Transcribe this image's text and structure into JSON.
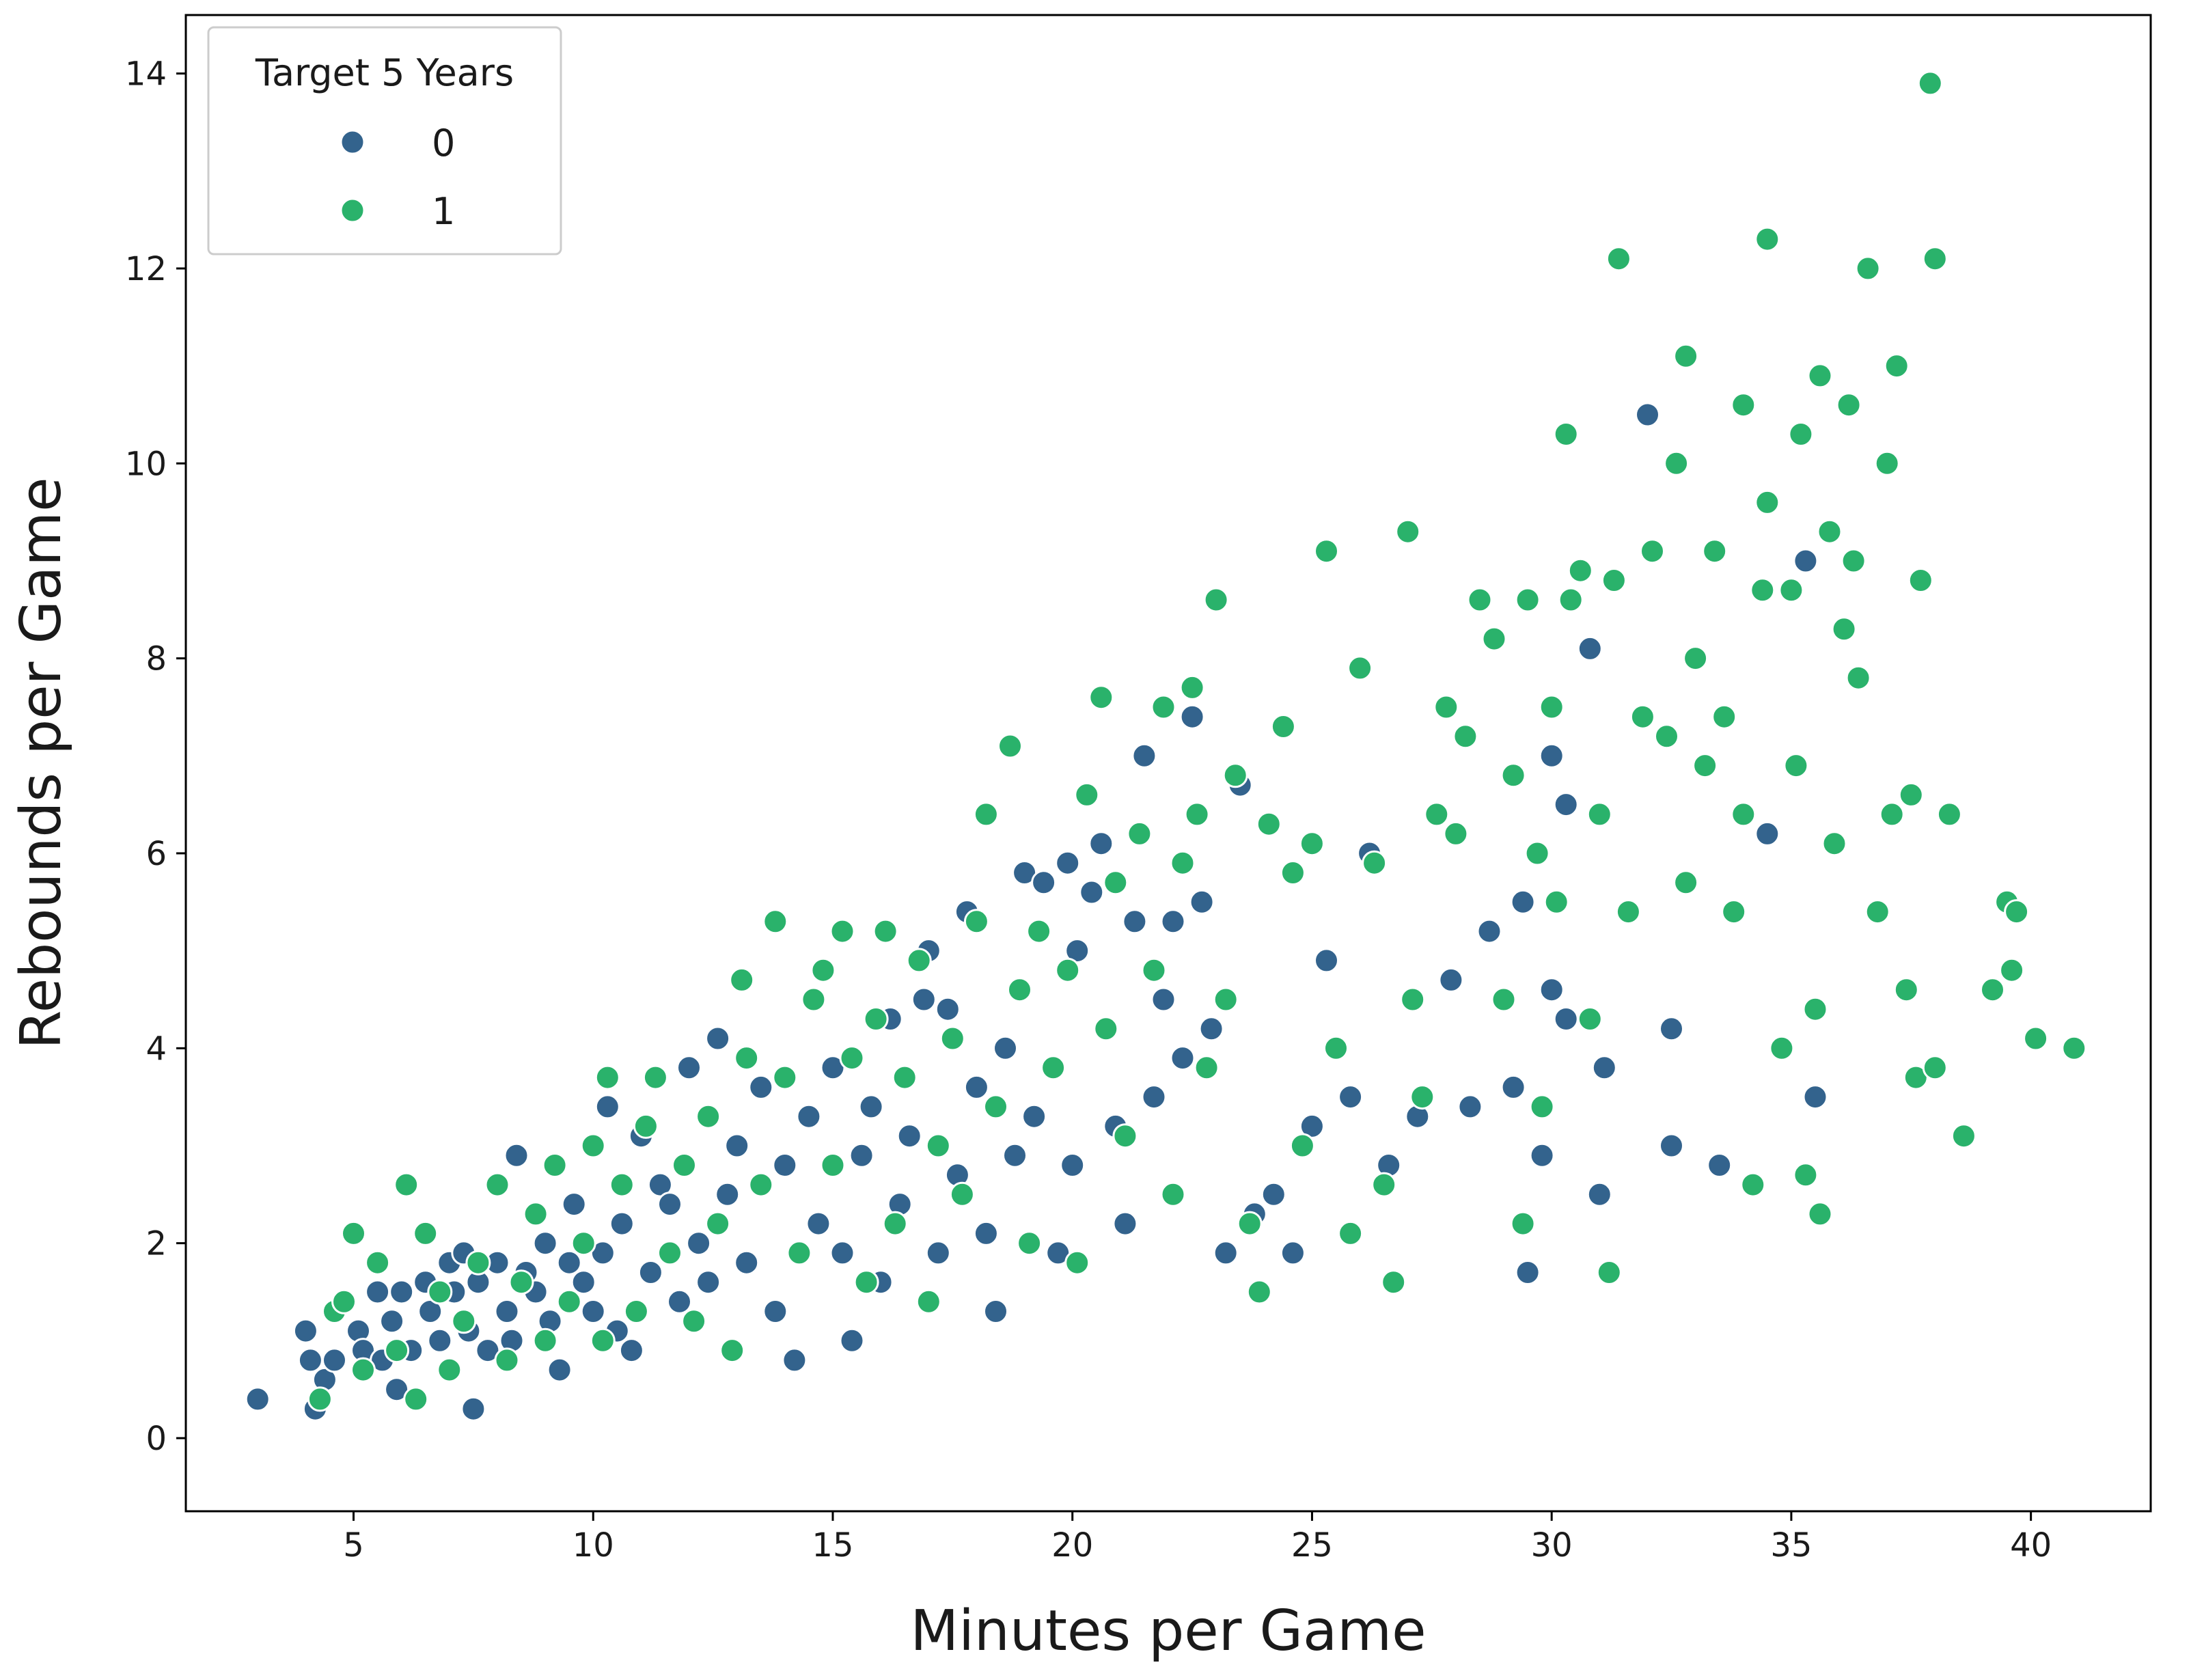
{
  "chart_data": {
    "type": "scatter",
    "title": "",
    "xlabel": "Minutes per Game",
    "ylabel": "Rebounds per Game",
    "xlim": [
      1.5,
      42.5
    ],
    "ylim": [
      -0.75,
      14.6
    ],
    "xticks": [
      5,
      10,
      15,
      20,
      25,
      30,
      35,
      40
    ],
    "yticks": [
      0,
      2,
      4,
      6,
      8,
      10,
      12,
      14
    ],
    "grid": false,
    "legend": {
      "title": "Target 5 Years",
      "position": "top-left",
      "entries": [
        {
          "label": "0",
          "color": "#33638d"
        },
        {
          "label": "1",
          "color": "#2ab26b"
        }
      ]
    },
    "colors": {
      "0": "#33638d",
      "1": "#2ab26b",
      "marker_edge": "#ffffff"
    },
    "series": [
      {
        "name": "0",
        "color": "#33638d",
        "points": [
          [
            3.0,
            0.4
          ],
          [
            4.0,
            1.1
          ],
          [
            4.1,
            0.8
          ],
          [
            4.2,
            0.3
          ],
          [
            4.4,
            0.6
          ],
          [
            4.6,
            0.8
          ],
          [
            5.1,
            1.1
          ],
          [
            5.2,
            0.9
          ],
          [
            5.5,
            1.5
          ],
          [
            5.6,
            0.8
          ],
          [
            5.8,
            1.2
          ],
          [
            5.9,
            0.5
          ],
          [
            6.0,
            1.5
          ],
          [
            6.2,
            0.9
          ],
          [
            6.5,
            1.6
          ],
          [
            6.6,
            1.3
          ],
          [
            6.8,
            1.0
          ],
          [
            7.0,
            1.8
          ],
          [
            7.1,
            1.5
          ],
          [
            7.3,
            1.9
          ],
          [
            7.4,
            1.1
          ],
          [
            7.5,
            0.3
          ],
          [
            7.6,
            1.6
          ],
          [
            7.8,
            0.9
          ],
          [
            8.0,
            1.8
          ],
          [
            8.2,
            1.3
          ],
          [
            8.3,
            1.0
          ],
          [
            8.4,
            2.9
          ],
          [
            8.6,
            1.7
          ],
          [
            8.8,
            1.5
          ],
          [
            9.0,
            2.0
          ],
          [
            9.1,
            1.2
          ],
          [
            9.3,
            0.7
          ],
          [
            9.5,
            1.8
          ],
          [
            9.6,
            2.4
          ],
          [
            9.8,
            1.6
          ],
          [
            10.0,
            1.3
          ],
          [
            10.2,
            1.9
          ],
          [
            10.3,
            3.4
          ],
          [
            10.5,
            1.1
          ],
          [
            10.6,
            2.2
          ],
          [
            10.8,
            0.9
          ],
          [
            11.0,
            3.1
          ],
          [
            11.2,
            1.7
          ],
          [
            11.4,
            2.6
          ],
          [
            11.6,
            2.4
          ],
          [
            11.8,
            1.4
          ],
          [
            12.0,
            3.8
          ],
          [
            12.2,
            2.0
          ],
          [
            12.4,
            1.6
          ],
          [
            12.6,
            4.1
          ],
          [
            12.8,
            2.5
          ],
          [
            13.0,
            3.0
          ],
          [
            13.2,
            1.8
          ],
          [
            13.5,
            3.6
          ],
          [
            13.8,
            1.3
          ],
          [
            14.0,
            2.8
          ],
          [
            14.2,
            0.8
          ],
          [
            14.5,
            3.3
          ],
          [
            14.7,
            2.2
          ],
          [
            15.0,
            3.8
          ],
          [
            15.2,
            1.9
          ],
          [
            15.4,
            1.0
          ],
          [
            15.6,
            2.9
          ],
          [
            15.8,
            3.4
          ],
          [
            16.0,
            1.6
          ],
          [
            16.2,
            4.3
          ],
          [
            16.4,
            2.4
          ],
          [
            16.6,
            3.1
          ],
          [
            16.9,
            4.5
          ],
          [
            17.0,
            5.0
          ],
          [
            17.2,
            1.9
          ],
          [
            17.4,
            4.4
          ],
          [
            17.6,
            2.7
          ],
          [
            17.8,
            5.4
          ],
          [
            18.0,
            3.6
          ],
          [
            18.2,
            2.1
          ],
          [
            18.4,
            1.3
          ],
          [
            18.6,
            4.0
          ],
          [
            18.8,
            2.9
          ],
          [
            19.0,
            5.8
          ],
          [
            19.2,
            3.3
          ],
          [
            19.4,
            5.7
          ],
          [
            19.7,
            1.9
          ],
          [
            19.9,
            5.9
          ],
          [
            20.0,
            2.8
          ],
          [
            20.1,
            5.0
          ],
          [
            20.4,
            5.6
          ],
          [
            20.6,
            6.1
          ],
          [
            20.9,
            3.2
          ],
          [
            21.1,
            2.2
          ],
          [
            21.3,
            5.3
          ],
          [
            21.5,
            7.0
          ],
          [
            21.7,
            3.5
          ],
          [
            21.9,
            4.5
          ],
          [
            22.1,
            5.3
          ],
          [
            22.3,
            3.9
          ],
          [
            22.5,
            7.4
          ],
          [
            22.7,
            5.5
          ],
          [
            22.9,
            4.2
          ],
          [
            23.2,
            1.9
          ],
          [
            23.5,
            6.7
          ],
          [
            23.8,
            2.3
          ],
          [
            24.2,
            2.5
          ],
          [
            24.6,
            1.9
          ],
          [
            25.0,
            3.2
          ],
          [
            25.3,
            4.9
          ],
          [
            25.8,
            3.5
          ],
          [
            26.2,
            6.0
          ],
          [
            26.6,
            2.8
          ],
          [
            27.2,
            3.3
          ],
          [
            27.9,
            4.7
          ],
          [
            28.3,
            3.4
          ],
          [
            28.7,
            5.2
          ],
          [
            29.2,
            3.6
          ],
          [
            29.4,
            5.5
          ],
          [
            29.5,
            1.7
          ],
          [
            29.8,
            2.9
          ],
          [
            30.0,
            7.0
          ],
          [
            30.0,
            4.6
          ],
          [
            30.3,
            6.5
          ],
          [
            30.3,
            4.3
          ],
          [
            30.8,
            8.1
          ],
          [
            31.0,
            2.5
          ],
          [
            31.1,
            3.8
          ],
          [
            32.0,
            10.5
          ],
          [
            32.5,
            3.0
          ],
          [
            32.5,
            4.2
          ],
          [
            33.5,
            2.8
          ],
          [
            34.5,
            6.2
          ],
          [
            35.3,
            9.0
          ],
          [
            35.5,
            3.5
          ]
        ]
      },
      {
        "name": "1",
        "color": "#2ab26b",
        "points": [
          [
            4.3,
            0.4
          ],
          [
            4.6,
            1.3
          ],
          [
            4.8,
            1.4
          ],
          [
            5.0,
            2.1
          ],
          [
            5.2,
            0.7
          ],
          [
            5.5,
            1.8
          ],
          [
            5.9,
            0.9
          ],
          [
            6.1,
            2.6
          ],
          [
            6.3,
            0.4
          ],
          [
            6.5,
            2.1
          ],
          [
            6.8,
            1.5
          ],
          [
            7.0,
            0.7
          ],
          [
            7.3,
            1.2
          ],
          [
            7.6,
            1.8
          ],
          [
            8.0,
            2.6
          ],
          [
            8.2,
            0.8
          ],
          [
            8.5,
            1.6
          ],
          [
            8.8,
            2.3
          ],
          [
            9.0,
            1.0
          ],
          [
            9.2,
            2.8
          ],
          [
            9.5,
            1.4
          ],
          [
            9.8,
            2.0
          ],
          [
            10.0,
            3.0
          ],
          [
            10.2,
            1.0
          ],
          [
            10.3,
            3.7
          ],
          [
            10.6,
            2.6
          ],
          [
            10.9,
            1.3
          ],
          [
            11.1,
            3.2
          ],
          [
            11.3,
            3.7
          ],
          [
            11.6,
            1.9
          ],
          [
            11.9,
            2.8
          ],
          [
            12.1,
            1.2
          ],
          [
            12.4,
            3.3
          ],
          [
            12.6,
            2.2
          ],
          [
            12.9,
            0.9
          ],
          [
            13.1,
            4.7
          ],
          [
            13.2,
            3.9
          ],
          [
            13.5,
            2.6
          ],
          [
            13.8,
            5.3
          ],
          [
            14.0,
            3.7
          ],
          [
            14.3,
            1.9
          ],
          [
            14.6,
            4.5
          ],
          [
            14.8,
            4.8
          ],
          [
            15.0,
            2.8
          ],
          [
            15.2,
            5.2
          ],
          [
            15.4,
            3.9
          ],
          [
            15.7,
            1.6
          ],
          [
            15.9,
            4.3
          ],
          [
            16.1,
            5.2
          ],
          [
            16.3,
            2.2
          ],
          [
            16.5,
            3.7
          ],
          [
            16.8,
            4.9
          ],
          [
            17.0,
            1.4
          ],
          [
            17.2,
            3.0
          ],
          [
            17.5,
            4.1
          ],
          [
            17.7,
            2.5
          ],
          [
            18.0,
            5.3
          ],
          [
            18.2,
            6.4
          ],
          [
            18.4,
            3.4
          ],
          [
            18.7,
            7.1
          ],
          [
            18.9,
            4.6
          ],
          [
            19.1,
            2.0
          ],
          [
            19.3,
            5.2
          ],
          [
            19.6,
            3.8
          ],
          [
            19.9,
            4.8
          ],
          [
            20.1,
            1.8
          ],
          [
            20.3,
            6.6
          ],
          [
            20.6,
            7.6
          ],
          [
            20.7,
            4.2
          ],
          [
            20.9,
            5.7
          ],
          [
            21.1,
            3.1
          ],
          [
            21.4,
            6.2
          ],
          [
            21.7,
            4.8
          ],
          [
            21.9,
            7.5
          ],
          [
            22.1,
            2.5
          ],
          [
            22.3,
            5.9
          ],
          [
            22.5,
            7.7
          ],
          [
            22.6,
            6.4
          ],
          [
            22.8,
            3.8
          ],
          [
            23.0,
            8.6
          ],
          [
            23.2,
            4.5
          ],
          [
            23.4,
            6.8
          ],
          [
            23.7,
            2.2
          ],
          [
            23.9,
            1.5
          ],
          [
            24.1,
            6.3
          ],
          [
            24.4,
            7.3
          ],
          [
            24.6,
            5.8
          ],
          [
            24.8,
            3.0
          ],
          [
            25.0,
            6.1
          ],
          [
            25.3,
            9.1
          ],
          [
            25.5,
            4.0
          ],
          [
            25.8,
            2.1
          ],
          [
            26.0,
            7.9
          ],
          [
            26.3,
            5.9
          ],
          [
            26.5,
            2.6
          ],
          [
            26.7,
            1.6
          ],
          [
            27.0,
            9.3
          ],
          [
            27.1,
            4.5
          ],
          [
            27.3,
            3.5
          ],
          [
            27.6,
            6.4
          ],
          [
            27.8,
            7.5
          ],
          [
            28.0,
            6.2
          ],
          [
            28.2,
            7.2
          ],
          [
            28.5,
            8.6
          ],
          [
            28.8,
            8.2
          ],
          [
            29.0,
            4.5
          ],
          [
            29.2,
            6.8
          ],
          [
            29.4,
            2.2
          ],
          [
            29.5,
            8.6
          ],
          [
            29.7,
            6.0
          ],
          [
            29.8,
            3.4
          ],
          [
            30.0,
            7.5
          ],
          [
            30.1,
            5.5
          ],
          [
            30.3,
            10.3
          ],
          [
            30.4,
            8.6
          ],
          [
            30.6,
            8.9
          ],
          [
            30.8,
            4.3
          ],
          [
            31.0,
            6.4
          ],
          [
            31.2,
            1.7
          ],
          [
            31.3,
            8.8
          ],
          [
            31.4,
            12.1
          ],
          [
            31.6,
            5.4
          ],
          [
            31.9,
            7.4
          ],
          [
            32.1,
            9.1
          ],
          [
            32.4,
            7.2
          ],
          [
            32.6,
            10.0
          ],
          [
            32.8,
            11.1
          ],
          [
            32.8,
            5.7
          ],
          [
            33.0,
            8.0
          ],
          [
            33.2,
            6.9
          ],
          [
            33.4,
            9.1
          ],
          [
            33.6,
            7.4
          ],
          [
            33.8,
            5.4
          ],
          [
            34.0,
            10.6
          ],
          [
            34.0,
            6.4
          ],
          [
            34.2,
            2.6
          ],
          [
            34.4,
            8.7
          ],
          [
            34.5,
            12.3
          ],
          [
            34.5,
            9.6
          ],
          [
            34.8,
            4.0
          ],
          [
            35.0,
            8.7
          ],
          [
            35.1,
            6.9
          ],
          [
            35.2,
            10.3
          ],
          [
            35.3,
            2.7
          ],
          [
            35.5,
            4.4
          ],
          [
            35.6,
            10.9
          ],
          [
            35.6,
            2.3
          ],
          [
            35.8,
            9.3
          ],
          [
            35.9,
            6.1
          ],
          [
            36.1,
            8.3
          ],
          [
            36.2,
            10.6
          ],
          [
            36.3,
            9.0
          ],
          [
            36.4,
            7.8
          ],
          [
            36.6,
            12.0
          ],
          [
            36.8,
            5.4
          ],
          [
            37.0,
            10.0
          ],
          [
            37.1,
            6.4
          ],
          [
            37.2,
            11.0
          ],
          [
            37.4,
            4.6
          ],
          [
            37.5,
            6.6
          ],
          [
            37.6,
            3.7
          ],
          [
            37.7,
            8.8
          ],
          [
            37.9,
            13.9
          ],
          [
            38.0,
            12.1
          ],
          [
            38.0,
            3.8
          ],
          [
            38.3,
            6.4
          ],
          [
            38.6,
            3.1
          ],
          [
            39.2,
            4.6
          ],
          [
            39.5,
            5.5
          ],
          [
            39.6,
            4.8
          ],
          [
            39.7,
            5.4
          ],
          [
            40.1,
            4.1
          ],
          [
            40.9,
            4.0
          ]
        ]
      }
    ]
  }
}
